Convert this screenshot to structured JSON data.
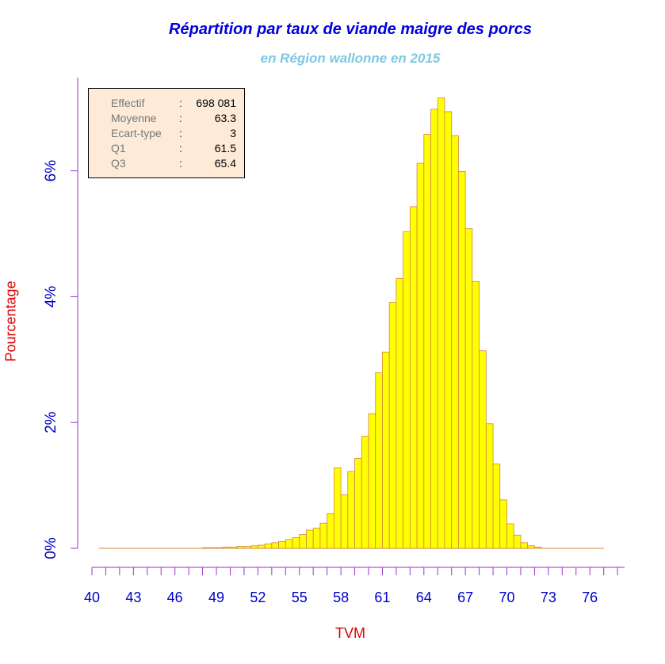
{
  "chart_data": {
    "type": "bar",
    "title": "Répartition par taux de viande maigre des porcs",
    "subtitle": "en Région wallonne en 2015",
    "xlabel": "TVM",
    "ylabel": "Pourcentage",
    "xlim": [
      40,
      78
    ],
    "ylim": [
      0,
      7.3
    ],
    "xticks": [
      "40",
      "43",
      "46",
      "49",
      "52",
      "55",
      "58",
      "61",
      "64",
      "67",
      "70",
      "73",
      "76"
    ],
    "yticks": [
      "0%",
      "2%",
      "4%",
      "6%"
    ],
    "bin_width": 0.5,
    "x": [
      40.5,
      41,
      41.5,
      42,
      42.5,
      43,
      43.5,
      44,
      44.5,
      45,
      45.5,
      46,
      46.5,
      47,
      47.5,
      48,
      48.5,
      49,
      49.5,
      50,
      50.5,
      51,
      51.5,
      52,
      52.5,
      53,
      53.5,
      54,
      54.5,
      55,
      55.5,
      56,
      56.5,
      57,
      57.5,
      58,
      58.5,
      59,
      59.5,
      60,
      60.5,
      61,
      61.5,
      62,
      62.5,
      63,
      63.5,
      64,
      64.5,
      65,
      65.5,
      66,
      66.5,
      67,
      67.5,
      68,
      68.5,
      69,
      69.5,
      70,
      70.5,
      71,
      71.5,
      72,
      72.5,
      73,
      73.5,
      74,
      74.5,
      75,
      75.5,
      76,
      76.5
    ],
    "values": [
      0,
      0,
      0,
      0,
      0,
      0,
      0,
      0,
      0,
      0,
      0,
      0,
      0,
      0,
      0,
      0.01,
      0.01,
      0.01,
      0.02,
      0.02,
      0.03,
      0.03,
      0.04,
      0.05,
      0.07,
      0.09,
      0.11,
      0.14,
      0.17,
      0.22,
      0.29,
      0.32,
      0.4,
      0.55,
      1.28,
      0.85,
      1.22,
      1.43,
      1.78,
      2.14,
      2.79,
      3.12,
      3.91,
      4.29,
      5.03,
      5.43,
      6.12,
      6.58,
      6.98,
      7.16,
      6.94,
      6.56,
      5.99,
      5.08,
      4.24,
      3.14,
      1.98,
      1.34,
      0.77,
      0.39,
      0.21,
      0.09,
      0.04,
      0.02,
      0,
      0,
      0,
      0,
      0,
      0,
      0,
      0,
      0
    ],
    "color": "#ffff00",
    "border_color": "#d4843a",
    "axis_color": "#9932cc",
    "tick_label_color": "#0000cc",
    "stats": [
      {
        "label": "Effectif",
        "value": "698 081"
      },
      {
        "label": "Moyenne",
        "value": "63.3"
      },
      {
        "label": "Ecart-type",
        "value": "3"
      },
      {
        "label": "Q1",
        "value": "61.5"
      },
      {
        "label": "Q3",
        "value": "65.4"
      }
    ]
  }
}
